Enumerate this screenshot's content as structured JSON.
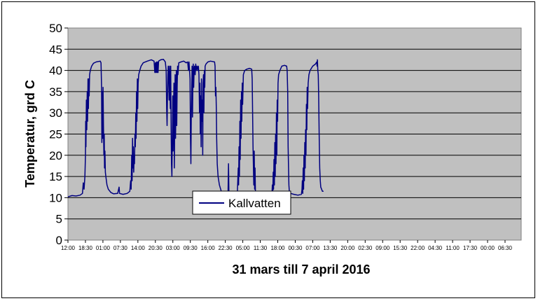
{
  "chart_data": {
    "type": "line",
    "xlabel": "31 mars till 7 april 2016",
    "ylabel": "Temperatur, grd C",
    "ylim": [
      0,
      50
    ],
    "yticks": [
      "0",
      "5",
      "10",
      "15",
      "20",
      "25",
      "30",
      "35",
      "40",
      "45",
      "50"
    ],
    "x_ticks": [
      "12:00",
      "18:30",
      "01:00",
      "07:30",
      "14:00",
      "20:30",
      "03:00",
      "09:30",
      "16:00",
      "22:30",
      "05:00",
      "11:30",
      "18:00",
      "00:30",
      "07:00",
      "13:30",
      "20:00",
      "02:30",
      "09:00",
      "15:30",
      "22:00",
      "04:30",
      "11:00",
      "17:30",
      "00:00",
      "06:30"
    ],
    "grid": true,
    "legend_position": "lower-center",
    "colors": {
      "series": "#000080",
      "plot_bg": "#c0c0c0",
      "grid": "#000000"
    },
    "series": [
      {
        "name": "Kallvatten",
        "x_unit": "hours since first tick",
        "points": [
          [
            0,
            10.2
          ],
          [
            1.5,
            10.5
          ],
          [
            3,
            10.4
          ],
          [
            4.5,
            10.6
          ],
          [
            5.4,
            11
          ],
          [
            5.7,
            13.5
          ],
          [
            6,
            12
          ],
          [
            6.3,
            15
          ],
          [
            6.5,
            20
          ],
          [
            6.6,
            28
          ],
          [
            6.7,
            22
          ],
          [
            6.85,
            33
          ],
          [
            7,
            26
          ],
          [
            7.15,
            35
          ],
          [
            7.3,
            28
          ],
          [
            7.45,
            38
          ],
          [
            7.6,
            31
          ],
          [
            7.75,
            38
          ],
          [
            7.9,
            34
          ],
          [
            8.05,
            39
          ],
          [
            8.3,
            40
          ],
          [
            8.8,
            41
          ],
          [
            9.5,
            41.7
          ],
          [
            10.5,
            42
          ],
          [
            12,
            42.2
          ],
          [
            12.3,
            41.8
          ],
          [
            12.5,
            36
          ],
          [
            12.6,
            23
          ],
          [
            12.75,
            35
          ],
          [
            12.9,
            24
          ],
          [
            13.05,
            36
          ],
          [
            13.2,
            27
          ],
          [
            13.35,
            20
          ],
          [
            13.5,
            25
          ],
          [
            13.6,
            17
          ],
          [
            13.75,
            21
          ],
          [
            13.9,
            16
          ],
          [
            14.1,
            15
          ],
          [
            14.5,
            13
          ],
          [
            15,
            12
          ],
          [
            16,
            11.2
          ],
          [
            17,
            10.9
          ],
          [
            18.5,
            11
          ],
          [
            19,
            12.5
          ],
          [
            19.2,
            11
          ],
          [
            20.5,
            10.8
          ],
          [
            22,
            11
          ],
          [
            23,
            11.5
          ],
          [
            23.3,
            14
          ],
          [
            23.5,
            12
          ],
          [
            23.7,
            20
          ],
          [
            23.85,
            14
          ],
          [
            24,
            24
          ],
          [
            24.15,
            17
          ],
          [
            24.3,
            22
          ],
          [
            24.45,
            16
          ],
          [
            24.6,
            20
          ],
          [
            24.75,
            18
          ],
          [
            24.9,
            25
          ],
          [
            25.05,
            22
          ],
          [
            25.2,
            30
          ],
          [
            25.35,
            24
          ],
          [
            25.5,
            35
          ],
          [
            25.65,
            28
          ],
          [
            25.8,
            38
          ],
          [
            25.95,
            31
          ],
          [
            26.1,
            37
          ],
          [
            26.3,
            39
          ],
          [
            26.7,
            40
          ],
          [
            27.2,
            41
          ],
          [
            28,
            41.8
          ],
          [
            29.5,
            42.2
          ],
          [
            31,
            42.5
          ],
          [
            32,
            42.2
          ],
          [
            32.3,
            39.5
          ],
          [
            32.5,
            41.8
          ],
          [
            32.7,
            39.5
          ],
          [
            32.9,
            42
          ],
          [
            33.1,
            39.5
          ],
          [
            33.3,
            42
          ],
          [
            33.5,
            39.5
          ],
          [
            33.7,
            42.2
          ],
          [
            34.5,
            42.5
          ],
          [
            35.5,
            42.6
          ],
          [
            36.2,
            42
          ],
          [
            36.5,
            40
          ],
          [
            36.7,
            31
          ],
          [
            36.85,
            27
          ],
          [
            37,
            34
          ],
          [
            37.15,
            39
          ],
          [
            37.3,
            41
          ],
          [
            37.45,
            38
          ],
          [
            37.6,
            33
          ],
          [
            37.75,
            41
          ],
          [
            37.9,
            36
          ],
          [
            38.05,
            31
          ],
          [
            38.2,
            41
          ],
          [
            38.35,
            26
          ],
          [
            38.5,
            18
          ],
          [
            38.65,
            15
          ],
          [
            38.8,
            24
          ],
          [
            38.95,
            34
          ],
          [
            39.1,
            21
          ],
          [
            39.25,
            30
          ],
          [
            39.4,
            37
          ],
          [
            39.55,
            17
          ],
          [
            39.7,
            28
          ],
          [
            39.85,
            39
          ],
          [
            40,
            24
          ],
          [
            40.15,
            32
          ],
          [
            40.3,
            40
          ],
          [
            40.45,
            27
          ],
          [
            40.6,
            36
          ],
          [
            40.75,
            41
          ],
          [
            40.9,
            39
          ],
          [
            41.2,
            41.8
          ],
          [
            42,
            42
          ],
          [
            43,
            42.2
          ],
          [
            44,
            41.8
          ],
          [
            44.5,
            42
          ],
          [
            44.8,
            40
          ],
          [
            45,
            42
          ],
          [
            45.4,
            38
          ],
          [
            45.55,
            24
          ],
          [
            45.7,
            18
          ],
          [
            45.85,
            30
          ],
          [
            46,
            35
          ],
          [
            46.15,
            41
          ],
          [
            46.3,
            29
          ],
          [
            46.45,
            38
          ],
          [
            46.6,
            41.5
          ],
          [
            46.75,
            36
          ],
          [
            46.9,
            40
          ],
          [
            47.05,
            41
          ],
          [
            47.3,
            39
          ],
          [
            47.5,
            41.5
          ],
          [
            47.7,
            40
          ],
          [
            48,
            41
          ],
          [
            48.3,
            40
          ],
          [
            48.5,
            41
          ],
          [
            48.7,
            39
          ],
          [
            48.9,
            30
          ],
          [
            49.05,
            37
          ],
          [
            49.2,
            25
          ],
          [
            49.35,
            34
          ],
          [
            49.5,
            22
          ],
          [
            49.65,
            38
          ],
          [
            49.8,
            28
          ],
          [
            49.95,
            33
          ],
          [
            50.1,
            20
          ],
          [
            50.25,
            37
          ],
          [
            50.4,
            39
          ],
          [
            50.55,
            30
          ],
          [
            50.7,
            40
          ],
          [
            50.85,
            36
          ],
          [
            51,
            41
          ],
          [
            51.3,
            41.5
          ],
          [
            52,
            42
          ],
          [
            53,
            42.2
          ],
          [
            54.5,
            42
          ],
          [
            54.7,
            41
          ],
          [
            54.85,
            34
          ],
          [
            55,
            36
          ],
          [
            55.15,
            31
          ],
          [
            55.3,
            24
          ],
          [
            55.5,
            18
          ],
          [
            55.8,
            15
          ],
          [
            56.3,
            13
          ],
          [
            57,
            11.5
          ],
          [
            58,
            10.8
          ],
          [
            59,
            10.6
          ],
          [
            59.5,
            10.8
          ],
          [
            59.7,
            18
          ],
          [
            59.85,
            11
          ],
          [
            60.5,
            10.8
          ],
          [
            61.5,
            10.7
          ],
          [
            62.5,
            11
          ],
          [
            63,
            11.5
          ],
          [
            63.3,
            17
          ],
          [
            63.45,
            13
          ],
          [
            63.6,
            22
          ],
          [
            63.75,
            15
          ],
          [
            63.9,
            28
          ],
          [
            64.05,
            19
          ],
          [
            64.2,
            33
          ],
          [
            64.35,
            24
          ],
          [
            64.5,
            35
          ],
          [
            64.65,
            28
          ],
          [
            64.8,
            37
          ],
          [
            64.95,
            32
          ],
          [
            65.2,
            39
          ],
          [
            65.7,
            40
          ],
          [
            66.5,
            40.3
          ],
          [
            67.5,
            40.5
          ],
          [
            68.3,
            40.3
          ],
          [
            68.5,
            38
          ],
          [
            68.65,
            30
          ],
          [
            68.8,
            22
          ],
          [
            68.95,
            17
          ],
          [
            69.1,
            13
          ],
          [
            69.25,
            21
          ],
          [
            69.4,
            12
          ],
          [
            69.55,
            17
          ],
          [
            69.7,
            11.5
          ],
          [
            70.3,
            11
          ],
          [
            71.5,
            10.5
          ],
          [
            72.5,
            10.2
          ],
          [
            74,
            10.2
          ],
          [
            75,
            10.5
          ],
          [
            75.8,
            10.5
          ],
          [
            76,
            13
          ],
          [
            76.15,
            11
          ],
          [
            76.3,
            16
          ],
          [
            76.45,
            12
          ],
          [
            76.6,
            19
          ],
          [
            76.75,
            13
          ],
          [
            76.9,
            23
          ],
          [
            77.05,
            15
          ],
          [
            77.2,
            25
          ],
          [
            77.35,
            18
          ],
          [
            77.5,
            30
          ],
          [
            77.65,
            20
          ],
          [
            77.8,
            33
          ],
          [
            77.95,
            28
          ],
          [
            78.1,
            37
          ],
          [
            78.3,
            39
          ],
          [
            78.8,
            40
          ],
          [
            79.5,
            41
          ],
          [
            80.5,
            41.2
          ],
          [
            81.3,
            41
          ],
          [
            81.5,
            40
          ],
          [
            81.7,
            35
          ],
          [
            81.85,
            22
          ],
          [
            82,
            17
          ],
          [
            82.15,
            13
          ],
          [
            82.3,
            11.5
          ],
          [
            82.8,
            11
          ],
          [
            84,
            10.8
          ],
          [
            85.5,
            10.6
          ],
          [
            86.8,
            10.8
          ],
          [
            87,
            12
          ],
          [
            87.15,
            14
          ],
          [
            87.3,
            11
          ],
          [
            87.45,
            17
          ],
          [
            87.6,
            12
          ],
          [
            87.75,
            20
          ],
          [
            87.9,
            14
          ],
          [
            88.05,
            23
          ],
          [
            88.2,
            17
          ],
          [
            88.35,
            26
          ],
          [
            88.5,
            20
          ],
          [
            88.65,
            32
          ],
          [
            88.8,
            26
          ],
          [
            88.95,
            36
          ],
          [
            89.1,
            31
          ],
          [
            89.3,
            37
          ],
          [
            89.6,
            39
          ],
          [
            90,
            40
          ],
          [
            91,
            41
          ],
          [
            92,
            41.5
          ],
          [
            92.5,
            42
          ],
          [
            92.6,
            41
          ],
          [
            92.75,
            42.5
          ],
          [
            92.9,
            40
          ],
          [
            93.05,
            39
          ],
          [
            93.2,
            34
          ],
          [
            93.4,
            25
          ],
          [
            93.6,
            17
          ],
          [
            93.8,
            14
          ],
          [
            94,
            12.5
          ],
          [
            94.3,
            12
          ],
          [
            94.6,
            11.5
          ],
          [
            95,
            11.5
          ]
        ]
      }
    ]
  }
}
